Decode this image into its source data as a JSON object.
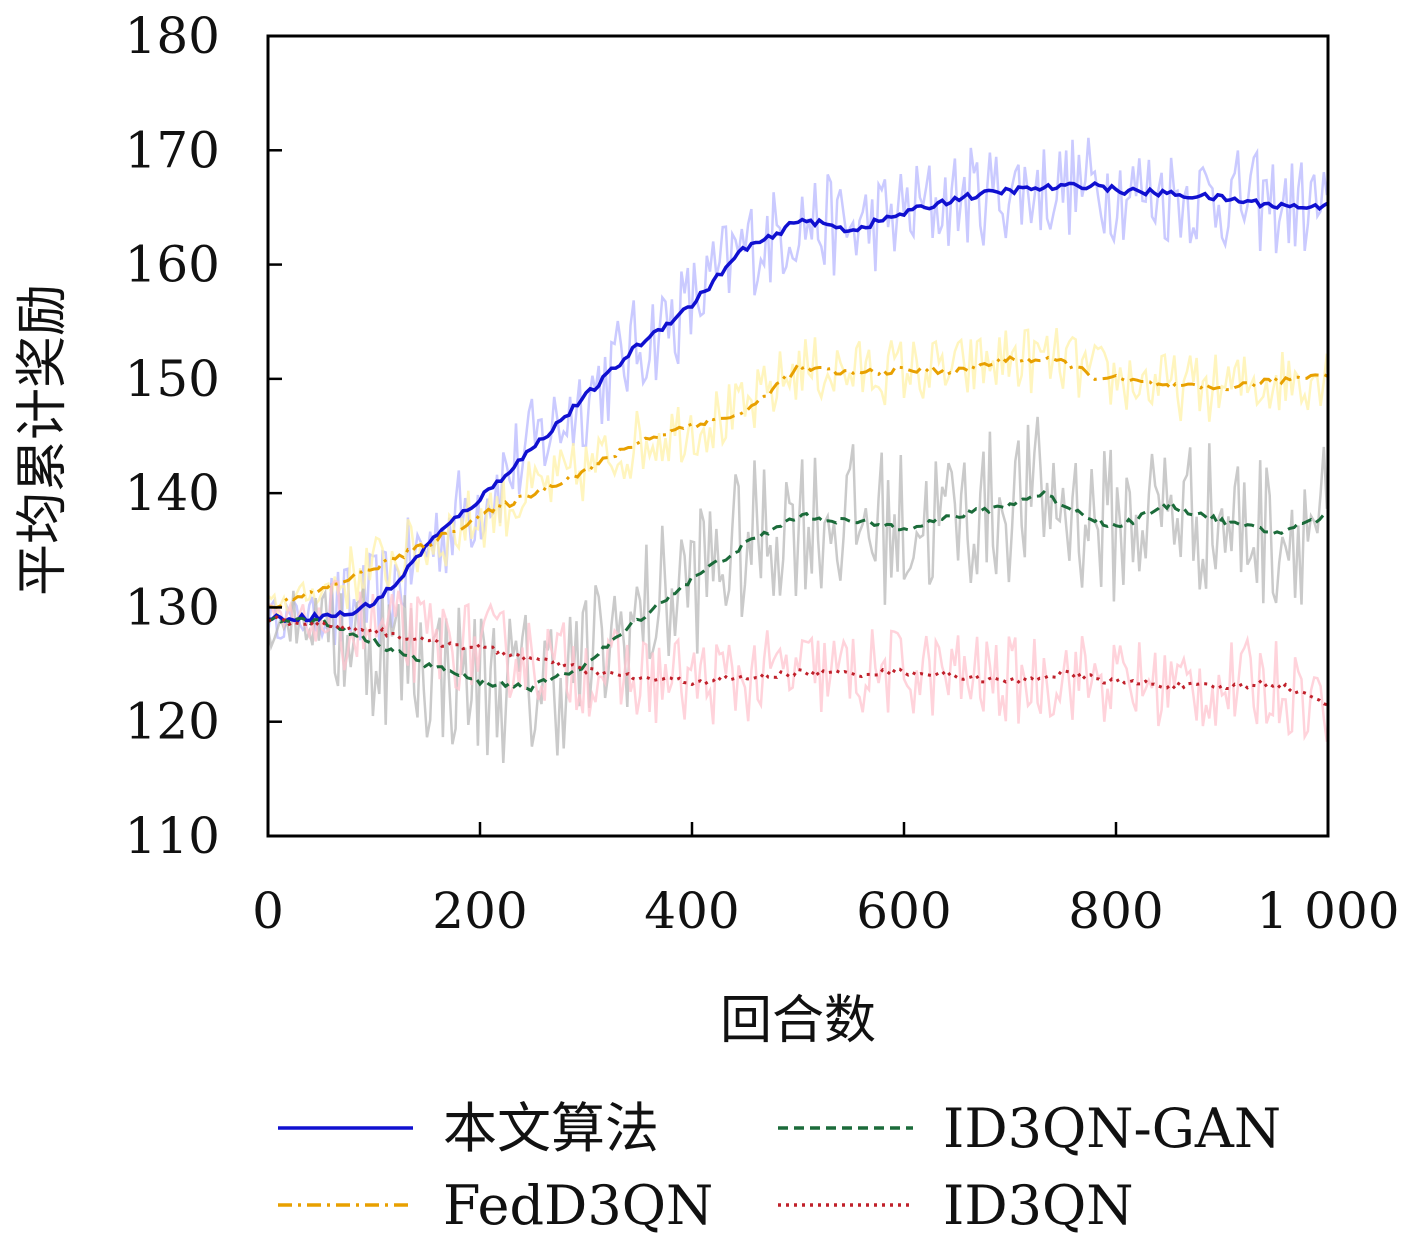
{
  "chart_data": {
    "type": "line",
    "xlabel": "回合数",
    "ylabel": "平均累计奖励",
    "xlim": [
      0,
      1000
    ],
    "ylim": [
      110,
      180
    ],
    "xticks": [
      0,
      200,
      400,
      600,
      800,
      1000
    ],
    "xtick_labels": [
      "0",
      "200",
      "400",
      "600",
      "800",
      "1 000"
    ],
    "yticks": [
      110,
      120,
      130,
      140,
      150,
      160,
      170,
      180
    ],
    "ytick_labels": [
      "110",
      "120",
      "130",
      "140",
      "150",
      "160",
      "170",
      "180"
    ],
    "grid": false,
    "legend_position": "bottom",
    "series": [
      {
        "name": "本文算法",
        "color": "#1010d0",
        "band_color": "#b8b8ff",
        "style": "solid",
        "noise": 4.5,
        "x": [
          0,
          50,
          80,
          100,
          120,
          150,
          180,
          200,
          250,
          300,
          350,
          400,
          420,
          450,
          480,
          500,
          550,
          600,
          650,
          700,
          750,
          780,
          800,
          850,
          900,
          950,
          990,
          1000
        ],
        "y": [
          129,
          129.2,
          129.5,
          130.5,
          132,
          135.5,
          138,
          139.5,
          144,
          148.5,
          153,
          156.5,
          158.5,
          161.5,
          162.5,
          164,
          163,
          164.5,
          165.8,
          166.5,
          166.8,
          167,
          166.5,
          166.2,
          165.8,
          165.2,
          165.0,
          165.6
        ]
      },
      {
        "name": "FedD3QN",
        "color": "#e8a000",
        "band_color": "#fff2a8",
        "style": "dashdot",
        "noise": 3.0,
        "x": [
          0,
          50,
          100,
          150,
          200,
          250,
          300,
          350,
          400,
          450,
          500,
          550,
          600,
          650,
          700,
          750,
          780,
          800,
          850,
          900,
          950,
          1000
        ],
        "y": [
          130,
          131.5,
          133.5,
          135.5,
          138,
          140,
          142,
          144.5,
          146,
          147,
          151,
          150.5,
          150.8,
          150.6,
          151.8,
          151.5,
          150.2,
          150,
          149.3,
          149.2,
          149.8,
          150.5
        ]
      },
      {
        "name": "ID3QN-GAN",
        "color": "#1b6b3a",
        "band_color": "#b8b8b8",
        "style": "dashed",
        "noise": 7.0,
        "x": [
          0,
          50,
          100,
          150,
          200,
          250,
          300,
          350,
          400,
          450,
          500,
          550,
          600,
          650,
          700,
          730,
          760,
          800,
          850,
          900,
          950,
          1000
        ],
        "y": [
          129,
          128.8,
          127,
          125,
          123.5,
          123,
          125,
          129,
          132.5,
          135.5,
          138,
          137.5,
          137,
          138,
          139,
          140,
          138.5,
          137,
          139,
          137.5,
          136.5,
          138
        ]
      },
      {
        "name": "ID3QN",
        "color": "#c0202a",
        "band_color": "#ffc4cf",
        "style": "dotted",
        "noise": 4.0,
        "x": [
          0,
          50,
          100,
          150,
          200,
          250,
          300,
          350,
          400,
          450,
          500,
          550,
          600,
          650,
          700,
          750,
          800,
          850,
          900,
          950,
          1000
        ],
        "y": [
          129,
          128.5,
          128,
          127,
          126.5,
          125.5,
          124.5,
          123.8,
          123.5,
          123.8,
          124.3,
          124.2,
          124.4,
          124,
          123.5,
          124.2,
          123.5,
          123.2,
          123,
          123.4,
          121.5
        ]
      }
    ]
  }
}
